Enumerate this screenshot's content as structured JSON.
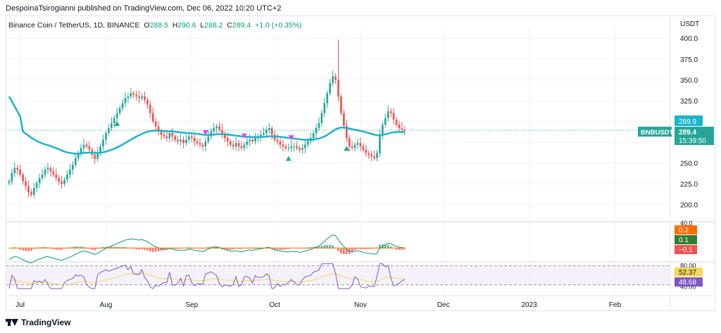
{
  "header": {
    "published": "DespoinaTsirogianni published on TradingView.com, Dec 06, 2022 10:20 UTC+2"
  },
  "legend": {
    "symbol": "Binance Coin / TetherUS, 1D, BINANCE",
    "o_label": "O",
    "o": "288.5",
    "h_label": "H",
    "h": "290.6",
    "l_label": "L",
    "l": "288.2",
    "c_label": "C",
    "c": "289.4",
    "change": "+1.0 (+0.35%)"
  },
  "footer": {
    "brand": "TradingView"
  },
  "colors": {
    "up": "#26a69a",
    "down": "#ef5350",
    "ma": "#1cb5c9",
    "macd": "#2962ff",
    "macd_signal": "#ff6d00",
    "rsi": "#7e57c2",
    "rsi_ma": "#f5d75a",
    "rsi_band": "#ede7f6",
    "grid": "#f0f3fa",
    "axis_text": "#131722"
  },
  "chart_data": {
    "type": "candlestick",
    "currency_label": "USDT",
    "y_ticks": [
      "400.0",
      "375.0",
      "350.0",
      "325.0",
      "300.0",
      "275.0",
      "250.0",
      "225.0",
      "200.0"
    ],
    "y_tick_values": [
      400,
      375,
      350,
      325,
      300,
      275,
      250,
      225,
      200
    ],
    "ylim": [
      182,
      412
    ],
    "x_ticks": [
      "Jul",
      "Aug",
      "Sep",
      "Oct",
      "Nov",
      "Dec",
      "2023",
      "Feb"
    ],
    "x_tick_days": [
      5,
      36,
      67,
      97,
      128,
      158,
      189,
      220
    ],
    "x_range_days": [
      0,
      240
    ],
    "candles_close": [
      228,
      238,
      244,
      242,
      236,
      228,
      222,
      215,
      212,
      220,
      226,
      232,
      236,
      242,
      244,
      240,
      236,
      232,
      228,
      225,
      230,
      236,
      242,
      248,
      256,
      262,
      268,
      272,
      270,
      266,
      260,
      255,
      262,
      270,
      278,
      286,
      292,
      298,
      304,
      310,
      316,
      322,
      328,
      330,
      334,
      332,
      330,
      328,
      330,
      326,
      320,
      310,
      300,
      294,
      288,
      284,
      282,
      280,
      286,
      282,
      278,
      276,
      278,
      274,
      278,
      282,
      280,
      276,
      274,
      272,
      270,
      276,
      282,
      288,
      292,
      294,
      290,
      284,
      280,
      276,
      272,
      270,
      274,
      270,
      268,
      272,
      276,
      278,
      276,
      280,
      282,
      284,
      286,
      290,
      292,
      284,
      278,
      276,
      272,
      270,
      268,
      268,
      270,
      270,
      268,
      266,
      268,
      272,
      276,
      280,
      286,
      292,
      298,
      310,
      322,
      334,
      346,
      354,
      350,
      330,
      310,
      295,
      280,
      270,
      268,
      272,
      274,
      270,
      266,
      262,
      260,
      258,
      256,
      262,
      284,
      296,
      304,
      312,
      310,
      302,
      296,
      292,
      290,
      289.4
    ],
    "price_last": "289.4",
    "price_label_ma": "289.9",
    "symbol_tag": "BNBUSDT",
    "countdown": "15:39:50",
    "macd": {
      "values_labels": [
        "0.2",
        "0.1",
        "−0.1"
      ],
      "tick_label": "40.0"
    },
    "rsi": {
      "tick_top": "80.00",
      "tick_bottom": "40.00",
      "value": "52.37",
      "ma_value": "48.68",
      "band": [
        30,
        70
      ]
    }
  }
}
